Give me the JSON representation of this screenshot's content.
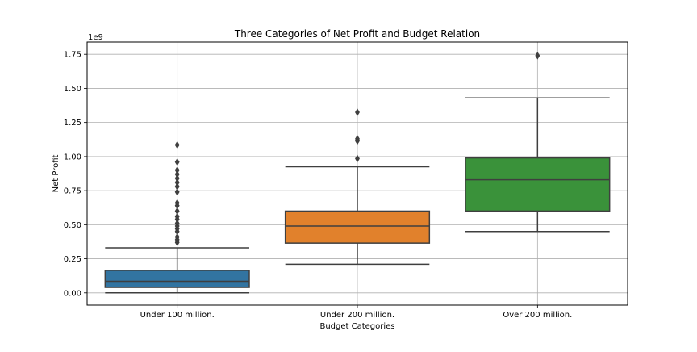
{
  "chart_data": {
    "type": "box",
    "title": "Three Categories of Net Profit and Budget Relation",
    "xlabel": "Budget Categories",
    "ylabel": "Net Profit",
    "offset_label": "1e9",
    "ylim": [
      -0.09,
      1.84
    ],
    "yticks": [
      0.0,
      0.25,
      0.5,
      0.75,
      1.0,
      1.25,
      1.5,
      1.75
    ],
    "ytick_labels": [
      "0.00",
      "0.25",
      "0.50",
      "0.75",
      "1.00",
      "1.25",
      "1.50",
      "1.75"
    ],
    "grid": true,
    "categories": [
      "Under 100 million.",
      "Under 200 million.",
      "Over 200 million."
    ],
    "boxes": [
      {
        "color": "#3274a1",
        "whisker_low": 0.0,
        "q1": 0.04,
        "median": 0.085,
        "q3": 0.165,
        "whisker_high": 0.33,
        "outliers": [
          0.37,
          0.39,
          0.41,
          0.45,
          0.47,
          0.49,
          0.51,
          0.54,
          0.56,
          0.6,
          0.64,
          0.66,
          0.74,
          0.78,
          0.81,
          0.84,
          0.87,
          0.9,
          0.96,
          1.085
        ]
      },
      {
        "color": "#e1812c",
        "whisker_low": 0.21,
        "q1": 0.365,
        "median": 0.49,
        "q3": 0.6,
        "whisker_high": 0.925,
        "outliers": [
          0.985,
          1.115,
          1.13,
          1.325
        ]
      },
      {
        "color": "#3a923a",
        "whisker_low": 0.45,
        "q1": 0.6,
        "median": 0.83,
        "q3": 0.99,
        "whisker_high": 1.43,
        "outliers": [
          1.74
        ]
      }
    ]
  }
}
